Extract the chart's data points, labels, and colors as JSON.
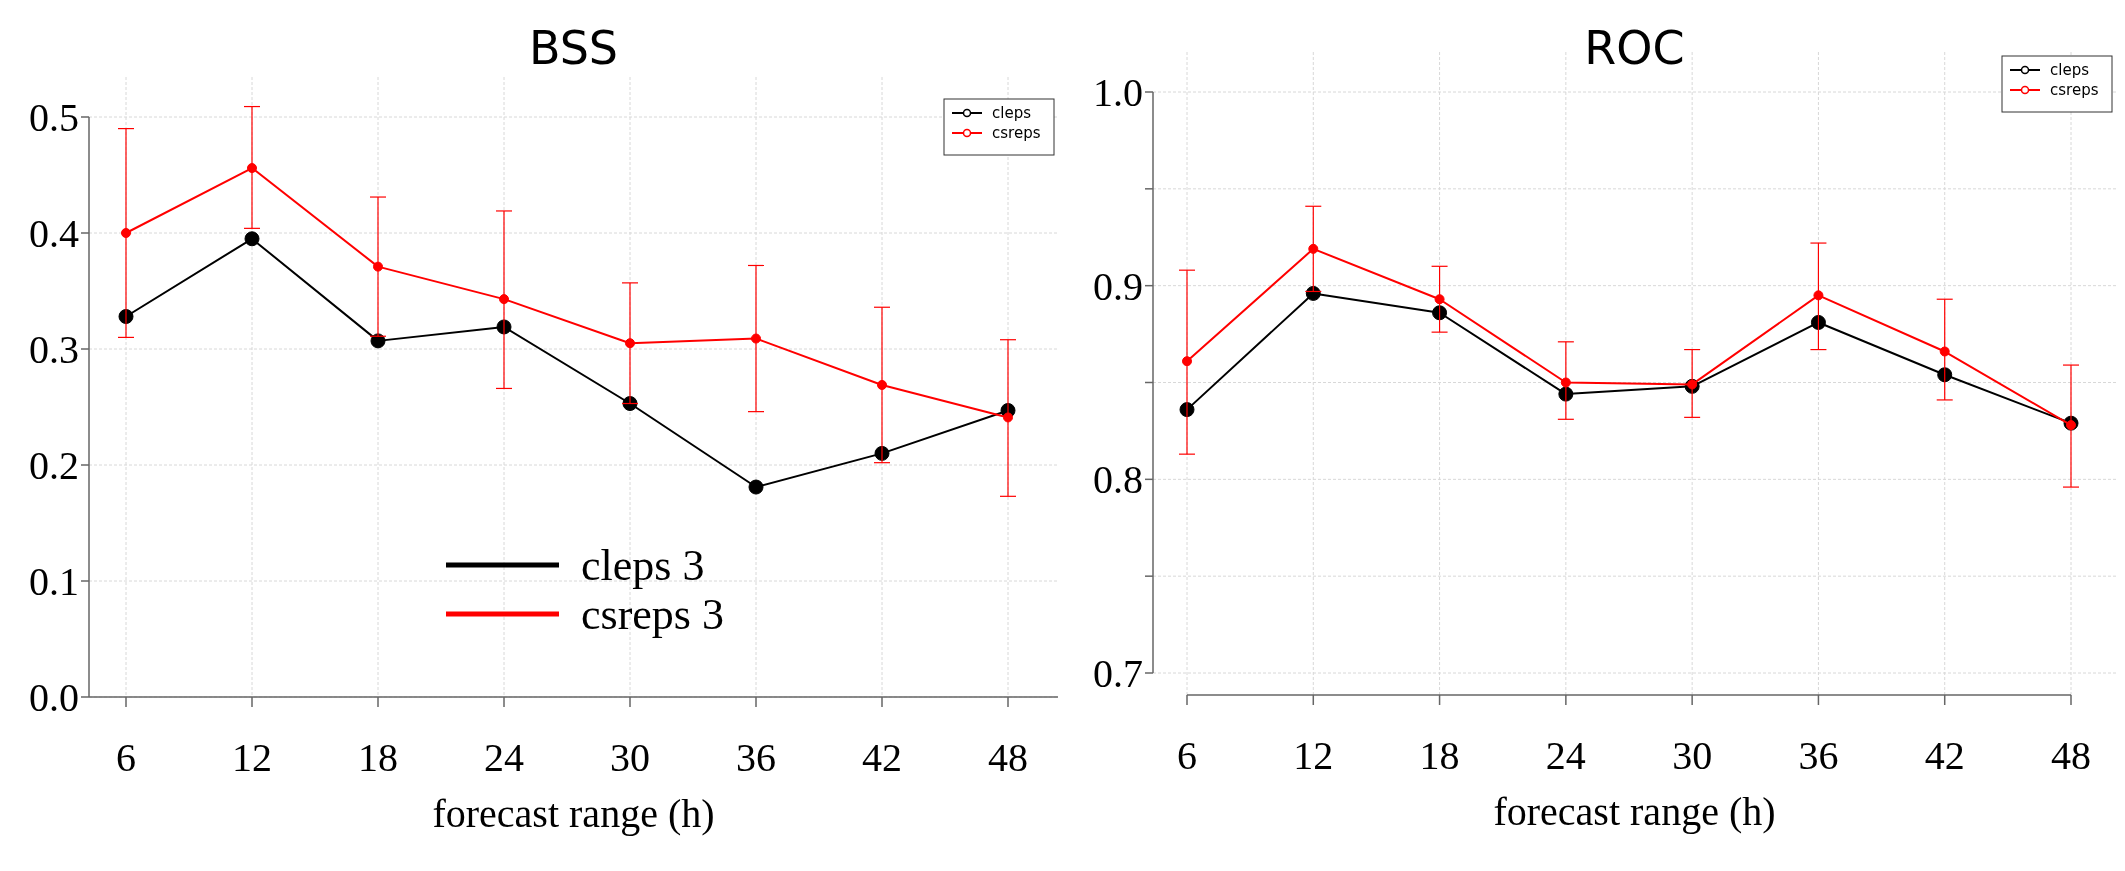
{
  "chart_data": [
    {
      "type": "line",
      "title": "BSS",
      "xlabel": "forecast range (h)",
      "categories": [
        "6",
        "12",
        "18",
        "24",
        "30",
        "36",
        "42",
        "48"
      ],
      "ylim": [
        0,
        0.5
      ],
      "yticks": [
        {
          "value": 0,
          "label": "0.0"
        },
        0.1,
        0.2,
        0.3,
        0.4,
        0.5
      ],
      "grid": true,
      "legend": "top right",
      "marker": "circle",
      "line_style": "solid",
      "annotations": [
        "cleps 3",
        "csreps 3"
      ],
      "series": [
        {
          "name": "cleps",
          "color": "#000000",
          "values": [
            0.328,
            0.395,
            0.307,
            0.319,
            0.253,
            0.181,
            0.21,
            0.247
          ]
        },
        {
          "name": "csreps",
          "color": "#ff0000",
          "values": [
            0.4,
            0.456,
            0.371,
            0.343,
            0.305,
            0.309,
            0.269,
            0.241
          ],
          "errors": [
            [
              0.31,
              0.49
            ],
            [
              0.404,
              0.509
            ],
            [
              0.311,
              0.431
            ],
            [
              0.266,
              0.419
            ],
            [
              0.253,
              0.357
            ],
            [
              0.246,
              0.372
            ],
            [
              0.202,
              0.336
            ],
            [
              0.173,
              0.308
            ]
          ]
        }
      ]
    },
    {
      "type": "line",
      "title": "ROC",
      "xlabel": "forecast range (h)",
      "categories": [
        "6",
        "12",
        "18",
        "24",
        "30",
        "36",
        "42",
        "48"
      ],
      "ylim": [
        0.7,
        1.0
      ],
      "yticks": [
        0.7,
        {
          "value": 0.75,
          "label": null
        },
        0.8,
        {
          "value": 0.85,
          "label": null
        },
        0.9,
        {
          "value": 0.95,
          "label": null
        },
        {
          "value": 1.0,
          "label": "1.0"
        }
      ],
      "grid": true,
      "legend": "top right",
      "marker": "circle",
      "line_style": "solid",
      "series": [
        {
          "name": "cleps",
          "color": "#000000",
          "values": [
            0.836,
            0.896,
            0.886,
            0.844,
            0.848,
            0.881,
            0.854,
            0.829
          ]
        },
        {
          "name": "csreps",
          "color": "#ff0000",
          "values": [
            0.861,
            0.919,
            0.893,
            0.85,
            0.849,
            0.895,
            0.866,
            0.828
          ],
          "errors": [
            [
              0.813,
              0.908
            ],
            [
              0.897,
              0.941
            ],
            [
              0.876,
              0.91
            ],
            [
              0.831,
              0.871
            ],
            [
              0.832,
              0.867
            ],
            [
              0.867,
              0.922
            ],
            [
              0.841,
              0.893
            ],
            [
              0.796,
              0.859
            ]
          ]
        }
      ]
    }
  ]
}
